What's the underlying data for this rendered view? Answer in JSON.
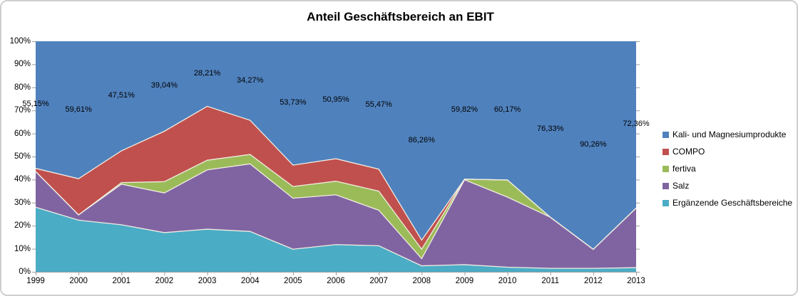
{
  "chart_title": "Anteil Geschäftsbereich an EBIT",
  "chart_data": {
    "type": "area",
    "stacked": true,
    "percent_stacked": true,
    "title": "Anteil Geschäftsbereich an EBIT",
    "categories": [
      "1999",
      "2000",
      "2001",
      "2002",
      "2003",
      "2004",
      "2005",
      "2006",
      "2007",
      "2008",
      "2009",
      "2010",
      "2011",
      "2012",
      "2013"
    ],
    "series": [
      {
        "name": "Ergänzende Geschäftsbereiche",
        "color": "#4BACC6",
        "values": [
          28.0,
          22.4,
          20.4,
          17.0,
          18.5,
          17.5,
          9.8,
          11.8,
          11.3,
          2.6,
          3.1,
          2.0,
          1.5,
          1.5,
          1.8
        ]
      },
      {
        "name": "Salz",
        "color": "#8064A2",
        "values": [
          15.5,
          2.3,
          17.6,
          17.2,
          25.7,
          29.3,
          22.1,
          21.6,
          15.4,
          3.1,
          36.8,
          30.4,
          22.17,
          8.24,
          25.84
        ]
      },
      {
        "name": "fertiva",
        "color": "#9BBB59",
        "values": [
          0,
          0,
          0.7,
          4.9,
          4.2,
          4.1,
          5.1,
          5.9,
          8.3,
          4.1,
          0.28,
          7.43,
          0,
          0,
          0
        ]
      },
      {
        "name": "COMPO",
        "color": "#C0504D",
        "values": [
          1.35,
          15.69,
          13.79,
          21.86,
          23.39,
          14.83,
          9.27,
          9.75,
          9.53,
          3.94,
          0,
          0,
          0,
          0,
          0
        ]
      },
      {
        "name": "Kali- und Magnesiumprodukte",
        "color": "#4F81BD",
        "values": [
          55.15,
          59.61,
          47.51,
          39.04,
          28.21,
          34.27,
          53.73,
          50.95,
          55.47,
          86.26,
          59.82,
          60.17,
          76.33,
          90.26,
          72.36
        ],
        "data_labels": [
          "55,15%",
          "59,61%",
          "47,51%",
          "39,04%",
          "28,21%",
          "34,27%",
          "53,73%",
          "50,95%",
          "55,47%",
          "86,26%",
          "59,82%",
          "60,17%",
          "76,33%",
          "90,26%",
          "72,36%"
        ]
      }
    ],
    "legend": {
      "position": "right",
      "entries": [
        "Kali- und Magnesiumprodukte",
        "COMPO",
        "fertiva",
        "Salz",
        "Ergänzende Geschäftsbereiche"
      ]
    },
    "y_axis": {
      "min": 0,
      "max": 100,
      "tick_labels": [
        "0%",
        "10%",
        "20%",
        "30%",
        "40%",
        "50%",
        "60%",
        "70%",
        "80%",
        "90%",
        "100%"
      ]
    },
    "grid": false,
    "colors": {
      "axis_line": "#9C9C9C",
      "series_border": "#F1EDE1",
      "chart_border": "#CFCFCF",
      "label_text": "#000000"
    }
  }
}
